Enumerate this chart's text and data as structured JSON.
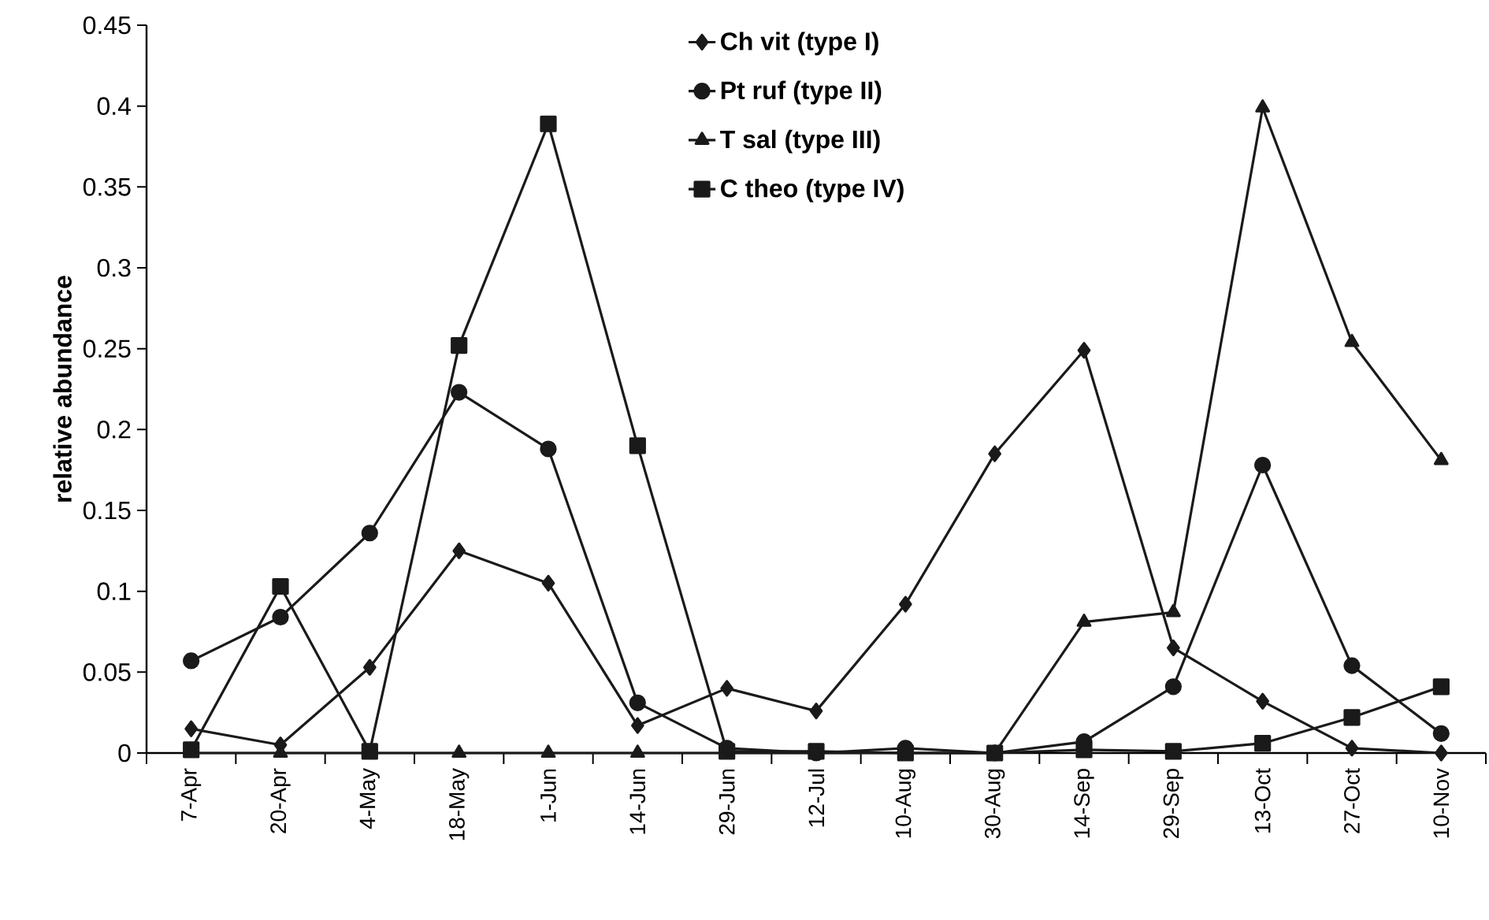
{
  "chart_data": {
    "type": "line",
    "ylabel": "relative abundance",
    "categories": [
      "7-Apr",
      "20-Apr",
      "4-May",
      "18-May",
      "1-Jun",
      "14-Jun",
      "29-Jun",
      "12-Jul",
      "10-Aug",
      "30-Aug",
      "14-Sep",
      "29-Sep",
      "13-Oct",
      "27-Oct",
      "10-Nov"
    ],
    "series": [
      {
        "name": "Ch vit (type I)",
        "color": "#1a1a1a",
        "marker": "diamond",
        "values": [
          0.015,
          0.005,
          0.053,
          0.125,
          0.105,
          0.017,
          0.04,
          0.026,
          0.092,
          0.185,
          0.249,
          0.065,
          0.032,
          0.003,
          0.0
        ]
      },
      {
        "name": "Pt ruf (type II)",
        "color": "#1a1a1a",
        "marker": "circle",
        "values": [
          0.057,
          0.084,
          0.136,
          0.223,
          0.188,
          0.031,
          0.003,
          0.0,
          0.003,
          0.0,
          0.007,
          0.041,
          0.178,
          0.054,
          0.012
        ]
      },
      {
        "name": "T sal (type III)",
        "color": "#1a1a1a",
        "marker": "triangle",
        "values": [
          0,
          0,
          0,
          0,
          0,
          0,
          0,
          0,
          0,
          0,
          0.081,
          0.087,
          0.399,
          0.254,
          0.181
        ]
      },
      {
        "name": "C theo (type IV)",
        "color": "#1a1a1a",
        "marker": "square",
        "values": [
          0.002,
          0.103,
          0.001,
          0.252,
          0.389,
          0.19,
          0.001,
          0.001,
          0.0,
          0.0,
          0.002,
          0.001,
          0.006,
          0.022,
          0.041
        ]
      }
    ],
    "ylim": [
      0,
      0.45
    ],
    "yticks": [
      0,
      0.05,
      0.1,
      0.15,
      0.2,
      0.25,
      0.3,
      0.35,
      0.4,
      0.45
    ],
    "grid": false,
    "legend": "top right",
    "line_style": "solid"
  }
}
